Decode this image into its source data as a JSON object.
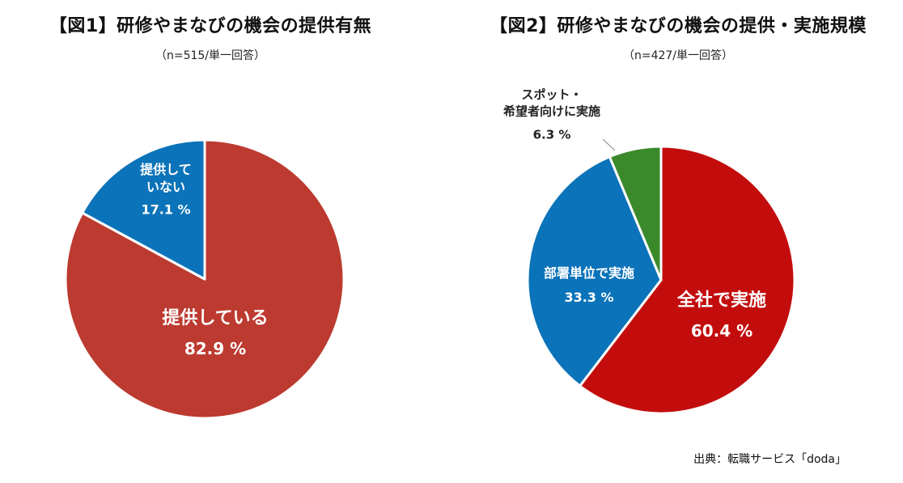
{
  "chart_data": [
    {
      "type": "pie",
      "title": "【図1】研修やまなびの機会の提供有無",
      "subtitle": "（n=515/単一回答）",
      "slices": [
        {
          "label": "提供している",
          "value": 82.9,
          "display": "82.9 %",
          "color": "#bc3a30"
        },
        {
          "label": "提供して\nいない",
          "value": 17.1,
          "display": "17.1 %",
          "color": "#0b73b9"
        }
      ]
    },
    {
      "type": "pie",
      "title": "【図2】研修やまなびの機会の提供・実施規模",
      "subtitle": "（n=427/単一回答）",
      "slices": [
        {
          "label": "全社で実施",
          "value": 60.4,
          "display": "60.4 %",
          "color": "#c30d0d"
        },
        {
          "label": "部署単位で実施",
          "value": 33.3,
          "display": "33.3 %",
          "color": "#0b73b9"
        },
        {
          "label": "スポット・\n希望者向けに実施",
          "value": 6.3,
          "display": "6.3 %",
          "color": "#3a8a2b"
        }
      ]
    }
  ],
  "source": "出典：転職サービス「doda」"
}
